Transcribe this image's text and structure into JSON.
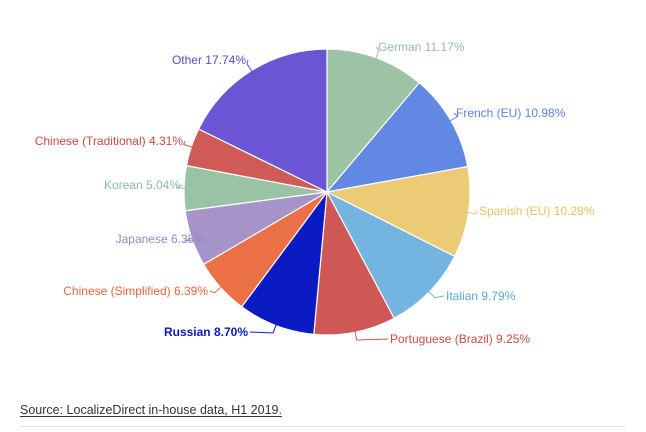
{
  "chart_data": {
    "type": "pie",
    "start_angle_deg": 0,
    "direction": "clockwise",
    "slices": [
      {
        "label": "German",
        "value": 11.17,
        "display": "German 11.17%",
        "color": "#9cc3a4",
        "label_color": "#93c19f",
        "bold": false
      },
      {
        "label": "French (EU)",
        "value": 10.98,
        "display": "French (EU) 10.98%",
        "color": "#6188e2",
        "label_color": "#5a84e0",
        "bold": false
      },
      {
        "label": "Spanish (EU)",
        "value": 10.28,
        "display": "Spanish (EU) 10.28%",
        "color": "#eccb77",
        "label_color": "#e6c25f",
        "bold": false
      },
      {
        "label": "Italian",
        "value": 9.79,
        "display": "Italian 9.79%",
        "color": "#74b4e0",
        "label_color": "#5aa7dc",
        "bold": false
      },
      {
        "label": "Portuguese (Brazil)",
        "value": 9.25,
        "display": "Portuguese (Brazil) 9.25%",
        "color": "#cf5857",
        "label_color": "#cc4a49",
        "bold": false
      },
      {
        "label": "Russian",
        "value": 8.7,
        "display": "Russian 8.70%",
        "color": "#0a1bc4",
        "label_color": "#0a1ab8",
        "bold": true
      },
      {
        "label": "Chinese (Simplified)",
        "value": 6.39,
        "display": "Chinese (Simplified) 6.39%",
        "color": "#ec7046",
        "label_color": "#e9643a",
        "bold": false
      },
      {
        "label": "Japanese",
        "value": 6.35,
        "display": "Japanese 6.35%",
        "color": "#a694c8",
        "label_color": "#9b88c2",
        "bold": false
      },
      {
        "label": "Korean",
        "value": 5.04,
        "display": "Korean 5.04%",
        "color": "#9ac3a6",
        "label_color": "#8dbd9c",
        "bold": false
      },
      {
        "label": "Chinese (Traditional)",
        "value": 4.31,
        "display": "Chinese (Traditional) 4.31%",
        "color": "#d05a55",
        "label_color": "#cc4a47",
        "bold": false
      },
      {
        "label": "Other",
        "value": 17.74,
        "display": "Other 17.74%",
        "color": "#6a55d4",
        "label_color": "#5e48cf",
        "bold": false
      }
    ]
  },
  "footer": {
    "source": "Source: LocalizeDirect in-house data, H1 2019."
  }
}
